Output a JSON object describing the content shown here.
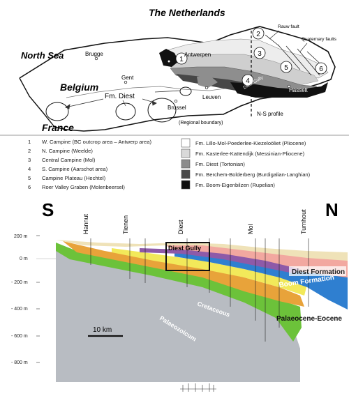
{
  "map": {
    "country_north": "The Netherlands",
    "sea": "North Sea",
    "country_mid": "Belgium",
    "country_south": "France",
    "formation_label": "Fm. Diest",
    "cities": {
      "brugge": "Brugge",
      "antwerpen": "Antwerpen",
      "gent": "Gent",
      "brussel": "Brussel",
      "leuven": "Leuven",
      "hasselt": "Hasselt"
    },
    "diest_gully": "Diest Gully",
    "rauw_fault": "Rauw fault",
    "quaternary_faults": "Quaternary faults",
    "regional_boundary": "(Regional boundary)",
    "ns_profile": "N-S profile",
    "area_numbers": [
      "1",
      "2",
      "3",
      "4",
      "5",
      "6"
    ]
  },
  "legend_areas": [
    {
      "num": "1",
      "text": "W. Campine (BC outcrop area – Antwerp area)"
    },
    {
      "num": "2",
      "text": "N. Campine (Weelde)"
    },
    {
      "num": "3",
      "text": "Central Campine (Mol)"
    },
    {
      "num": "4",
      "text": "S. Campine (Aarschot area)"
    },
    {
      "num": "5",
      "text": "Campine Plateau (Hechtel)"
    },
    {
      "num": "6",
      "text": "Roer Valley Graben (Molenbeersel)"
    }
  ],
  "legend_formations": [
    {
      "text": "Fm. Lillo-Mol-Poederlee-Kiezeloöliet (Pliocene)",
      "color": "#ffffff"
    },
    {
      "text": "Fm. Kasterlee-Kattendijk (Messinian-Pliocene)",
      "color": "#d9d9d9"
    },
    {
      "text": "Fm. Diest (Tortonian)",
      "color": "#8c8c8c"
    },
    {
      "text": "Fm. Berchem-Bolderberg (Burdigalian-Langhian)",
      "color": "#4a4a4a"
    },
    {
      "text": "Fm. Boom-Eigenbilzen (Rupelian)",
      "color": "#0d0d0d"
    }
  ],
  "section": {
    "south": "S",
    "north": "N",
    "towns": [
      "Hannut",
      "Tienen",
      "Diest",
      "Mol",
      "Turnhout"
    ],
    "depth_labels": [
      "200 m",
      "0 m",
      "- 200 m",
      "- 400 m",
      "- 600 m",
      "- 800 m"
    ],
    "diest_gully": "Diest Gully",
    "diest_formation": "Diest Formation",
    "boom_formation": "Boom Formation",
    "palaeocene_eocene": "Palaeocene-Eocene",
    "cretaceous": "Cretaceous",
    "palaeozoicum": "Palaeozoicum",
    "scale": "10 km"
  },
  "colors": {
    "palaeozoic": "#b8bcc2",
    "cretaceous": "#6cc23a",
    "boom": "#2f7fd0",
    "diest": "#f2a8a0",
    "eocene_orange": "#e8a33a",
    "eocene_yellow": "#f2e95a",
    "top_cream": "#efe2b8"
  }
}
